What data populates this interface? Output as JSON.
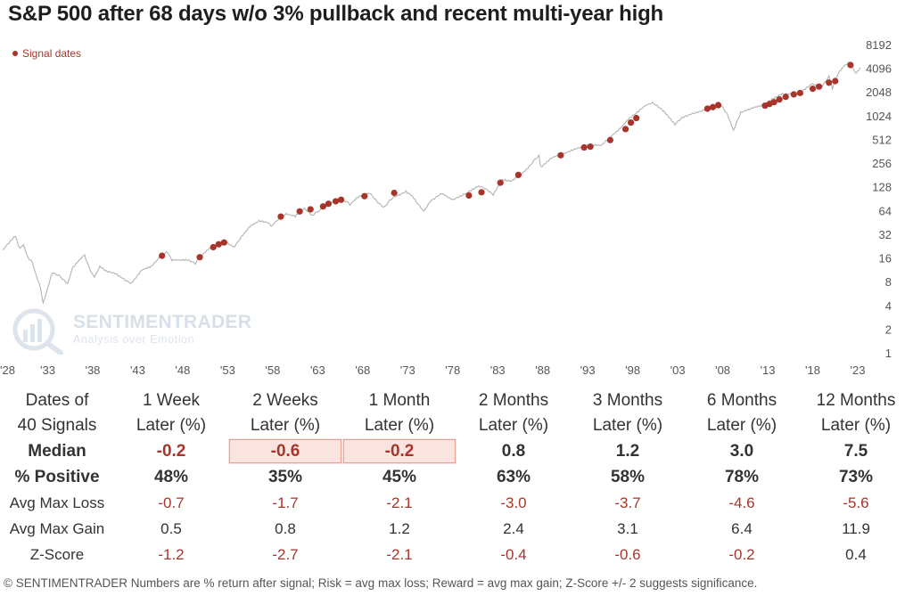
{
  "title": "S&P 500 after 68 days w/o 3% pullback and recent multi-year high",
  "chart_data": {
    "type": "line",
    "title": "S&P 500 after 68 days w/o 3% pullback and recent multi-year high",
    "y_scale": "log2",
    "ylim": [
      1,
      8192
    ],
    "y_ticks": [
      1,
      2,
      4,
      8,
      16,
      32,
      64,
      128,
      256,
      512,
      1024,
      2048,
      4096,
      8192
    ],
    "x_tick_labels": [
      "'28",
      "'33",
      "'38",
      "'43",
      "'48",
      "'53",
      "'58",
      "'63",
      "'68",
      "'73",
      "'78",
      "'83",
      "'88",
      "'93",
      "'98",
      "'03",
      "'08",
      "'13",
      "'18",
      "'23"
    ],
    "xlim": [
      1928,
      2023
    ],
    "legend": {
      "label": "Signal dates",
      "placement": "top-left"
    },
    "colors": {
      "line": "#b3b3b3",
      "signal": "#a8352c"
    },
    "series": [
      {
        "type": "line",
        "points": [
          [
            1928,
            20
          ],
          [
            1929.4,
            31
          ],
          [
            1929.9,
            21
          ],
          [
            1930.3,
            25
          ],
          [
            1930.8,
            17
          ],
          [
            1931.3,
            15
          ],
          [
            1931.7,
            10
          ],
          [
            1932.2,
            7
          ],
          [
            1932.5,
            4.5
          ],
          [
            1933.0,
            7
          ],
          [
            1933.5,
            11
          ],
          [
            1934.3,
            9.5
          ],
          [
            1935.2,
            8
          ],
          [
            1935.8,
            12
          ],
          [
            1936.5,
            15
          ],
          [
            1937.1,
            18
          ],
          [
            1937.6,
            13
          ],
          [
            1938.2,
            9
          ],
          [
            1938.8,
            13
          ],
          [
            1939.5,
            11
          ],
          [
            1940.5,
            10.5
          ],
          [
            1941.5,
            9
          ],
          [
            1942.3,
            8
          ],
          [
            1943.5,
            12
          ],
          [
            1944.5,
            13
          ],
          [
            1945.5,
            17
          ],
          [
            1946.3,
            19
          ],
          [
            1946.8,
            15
          ],
          [
            1947.5,
            15
          ],
          [
            1948.5,
            15
          ],
          [
            1949.4,
            14
          ],
          [
            1950.0,
            17
          ],
          [
            1951.0,
            22
          ],
          [
            1952.0,
            25
          ],
          [
            1953.0,
            26
          ],
          [
            1953.7,
            23
          ],
          [
            1954.5,
            31
          ],
          [
            1955.5,
            42
          ],
          [
            1956.5,
            48
          ],
          [
            1957.5,
            45
          ],
          [
            1957.8,
            40
          ],
          [
            1958.5,
            48
          ],
          [
            1959.5,
            58
          ],
          [
            1960.5,
            55
          ],
          [
            1961.5,
            70
          ],
          [
            1962.4,
            55
          ],
          [
            1963.5,
            72
          ],
          [
            1964.5,
            85
          ],
          [
            1965.5,
            92
          ],
          [
            1966.6,
            77
          ],
          [
            1967.5,
            95
          ],
          [
            1968.8,
            108
          ],
          [
            1970.4,
            72
          ],
          [
            1971.5,
            98
          ],
          [
            1972.8,
            118
          ],
          [
            1973.5,
            104
          ],
          [
            1974.8,
            64
          ],
          [
            1975.5,
            88
          ],
          [
            1976.8,
            105
          ],
          [
            1978.0,
            88
          ],
          [
            1979.5,
            105
          ],
          [
            1980.9,
            135
          ],
          [
            1982.5,
            105
          ],
          [
            1983.5,
            165
          ],
          [
            1984.5,
            160
          ],
          [
            1985.5,
            190
          ],
          [
            1986.5,
            240
          ],
          [
            1987.6,
            320
          ],
          [
            1987.8,
            225
          ],
          [
            1989.0,
            300
          ],
          [
            1990.5,
            340
          ],
          [
            1991.5,
            385
          ],
          [
            1993.0,
            450
          ],
          [
            1994.5,
            455
          ],
          [
            1995.5,
            580
          ],
          [
            1996.5,
            720
          ],
          [
            1997.5,
            950
          ],
          [
            1998.5,
            1150
          ],
          [
            1999.5,
            1400
          ],
          [
            2000.2,
            1520
          ],
          [
            2001.5,
            1150
          ],
          [
            2002.7,
            790
          ],
          [
            2003.5,
            1000
          ],
          [
            2004.5,
            1130
          ],
          [
            2005.5,
            1230
          ],
          [
            2006.5,
            1350
          ],
          [
            2007.7,
            1550
          ],
          [
            2008.5,
            1100
          ],
          [
            2009.2,
            700
          ],
          [
            2010.0,
            1120
          ],
          [
            2011.5,
            1300
          ],
          [
            2012.5,
            1400
          ],
          [
            2013.5,
            1700
          ],
          [
            2014.5,
            2000
          ],
          [
            2015.5,
            2050
          ],
          [
            2016.1,
            1870
          ],
          [
            2017.0,
            2300
          ],
          [
            2018.0,
            2750
          ],
          [
            2018.9,
            2400
          ],
          [
            2019.8,
            3200
          ],
          [
            2020.2,
            2300
          ],
          [
            2020.8,
            3500
          ],
          [
            2021.5,
            4400
          ],
          [
            2022.0,
            4780
          ],
          [
            2022.8,
            3700
          ],
          [
            2023.3,
            4300
          ]
        ]
      },
      {
        "name": "Signal dates",
        "type": "scatter",
        "points": [
          [
            1945.7,
            17.5
          ],
          [
            1949.9,
            16.8
          ],
          [
            1951.4,
            22.5
          ],
          [
            1952.0,
            24.5
          ],
          [
            1952.6,
            25.8
          ],
          [
            1958.9,
            55
          ],
          [
            1961.0,
            64
          ],
          [
            1962.2,
            68
          ],
          [
            1963.6,
            74
          ],
          [
            1964.2,
            80
          ],
          [
            1965.0,
            86
          ],
          [
            1965.6,
            90
          ],
          [
            1968.2,
            100
          ],
          [
            1971.5,
            110
          ],
          [
            1979.8,
            102
          ],
          [
            1981.2,
            112
          ],
          [
            1983.3,
            148
          ],
          [
            1985.3,
            186
          ],
          [
            1990.0,
            330
          ],
          [
            1992.6,
            415
          ],
          [
            1993.3,
            425
          ],
          [
            1995.5,
            515
          ],
          [
            1997.2,
            710
          ],
          [
            1997.8,
            860
          ],
          [
            1998.4,
            980
          ],
          [
            2006.3,
            1290
          ],
          [
            2006.9,
            1350
          ],
          [
            2007.5,
            1430
          ],
          [
            2012.7,
            1410
          ],
          [
            2013.2,
            1480
          ],
          [
            2013.7,
            1560
          ],
          [
            2014.3,
            1690
          ],
          [
            2015.0,
            1820
          ],
          [
            2015.9,
            1960
          ],
          [
            2016.6,
            2040
          ],
          [
            2018.0,
            2310
          ],
          [
            2018.7,
            2460
          ],
          [
            2019.8,
            2760
          ],
          [
            2020.5,
            2890
          ],
          [
            2022.2,
            4620
          ]
        ]
      }
    ]
  },
  "watermark": {
    "name": "SENTIMENTRADER",
    "tagline": "Analysis over Emotion"
  },
  "table": {
    "header": [
      "Dates of\n40 Signals",
      "1 Week\nLater (%)",
      "2 Weeks\nLater (%)",
      "1 Month\nLater (%)",
      "2 Months\nLater (%)",
      "3 Months\nLater (%)",
      "6 Months\nLater (%)",
      "12 Months\nLater (%)"
    ],
    "rows": [
      {
        "label": "Median",
        "bold": true,
        "values": [
          "-0.2",
          "-0.6",
          "-0.2",
          "0.8",
          "1.2",
          "3.0",
          "7.5"
        ],
        "highlight": [
          false,
          true,
          true,
          false,
          false,
          false,
          false
        ]
      },
      {
        "label": "% Positive",
        "bold": true,
        "values": [
          "48%",
          "35%",
          "45%",
          "63%",
          "58%",
          "78%",
          "73%"
        ],
        "highlight": [
          false,
          false,
          false,
          false,
          false,
          false,
          false
        ]
      },
      {
        "label": "Avg Max Loss",
        "bold": false,
        "values": [
          "-0.7",
          "-1.7",
          "-2.1",
          "-3.0",
          "-3.7",
          "-4.6",
          "-5.6"
        ],
        "highlight": [
          false,
          false,
          false,
          false,
          false,
          false,
          false
        ]
      },
      {
        "label": "Avg Max Gain",
        "bold": false,
        "values": [
          "0.5",
          "0.8",
          "1.2",
          "2.4",
          "3.1",
          "6.4",
          "11.9"
        ],
        "highlight": [
          false,
          false,
          false,
          false,
          false,
          false,
          false
        ]
      },
      {
        "label": "Z-Score",
        "bold": false,
        "values": [
          "-1.2",
          "-2.7",
          "-2.1",
          "-0.4",
          "-0.6",
          "-0.2",
          "0.4"
        ],
        "highlight": [
          false,
          false,
          false,
          false,
          false,
          false,
          false
        ]
      }
    ]
  },
  "footer": "© SENTIMENTRADER  Numbers are % return after signal; Risk = avg max loss; Reward = avg max gain; Z-Score +/- 2 suggests significance."
}
